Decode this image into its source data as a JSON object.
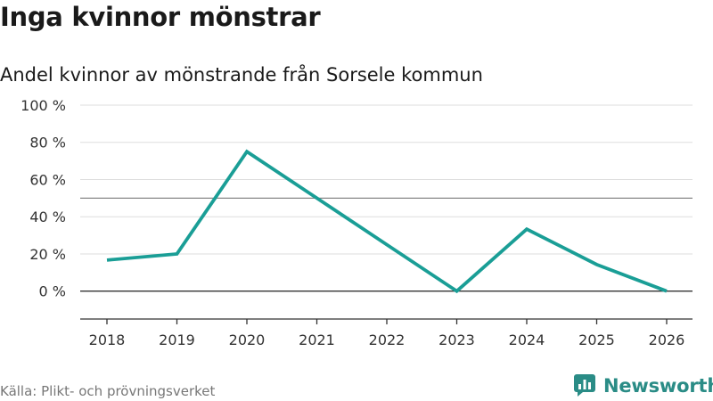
{
  "title": "Inga kvinnor mönstrar",
  "subtitle": "Andel kvinnor av mönstrande från Sorsele kommun",
  "source": "Källa: Plikt- och prövningsverket",
  "brand": "Newsworthy",
  "colors": {
    "line": "#1a9e96",
    "brand": "#2a8c86",
    "grid": "#dddddd",
    "reference": "#888888",
    "axis": "#333333"
  },
  "chart_data": {
    "type": "line",
    "title": "Inga kvinnor mönstrar",
    "subtitle": "Andel kvinnor av mönstrande från Sorsele kommun",
    "xlabel": "",
    "ylabel": "",
    "x": [
      "2018",
      "2019",
      "2020",
      "2021",
      "2022",
      "2023",
      "2024",
      "2025",
      "2026"
    ],
    "series": [
      {
        "name": "Andel kvinnor",
        "values": [
          16.7,
          20,
          75,
          50,
          25,
          0,
          33.3,
          14.3,
          0
        ]
      }
    ],
    "ylim": [
      -15,
      100
    ],
    "yticks": [
      0,
      20,
      40,
      60,
      80,
      100
    ],
    "ytick_labels": [
      "0 %",
      "20 %",
      "40 %",
      "60 %",
      "80 %",
      "100 %"
    ],
    "reference_line": 50,
    "grid": true
  }
}
